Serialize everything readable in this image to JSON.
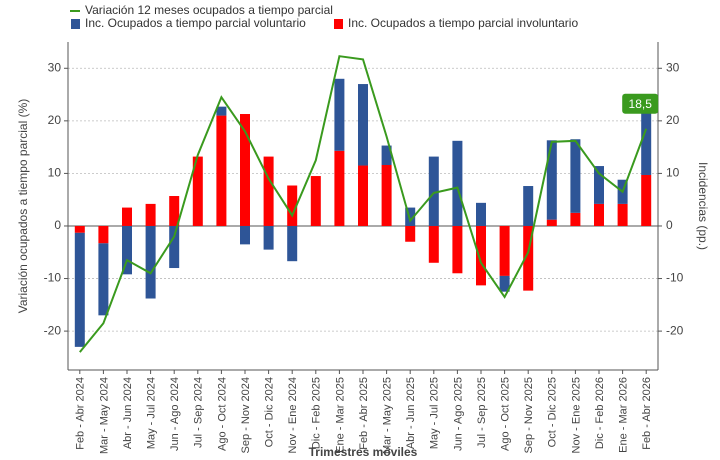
{
  "chart_data": {
    "type": "bar",
    "title": null,
    "x_label": "Trimestres móviles",
    "y_label": "Variación ocupados a tiempo parcial (%)",
    "y2_label": "Incidencias (pp.)",
    "categories": [
      "Feb - Abr 2024",
      "Mar - May 2024",
      "Abr - Jun 2024",
      "May - Jul 2024",
      "Jun - Ago 2024",
      "Jul - Sep 2024",
      "Ago - Oct 2024",
      "Sep - Nov 2024",
      "Oct - Dic 2024",
      "Nov - Ene 2024",
      "Dic - Feb 2025",
      "Ene - Mar 2025",
      "Feb - Abr 2025",
      "Mar - May 2025",
      "Abr - Jun 2025",
      "May - Jul 2025",
      "Jun - Ago 2025",
      "Jul - Sep 2025",
      "Ago - Oct 2025",
      "Sep - Nov 2025",
      "Oct - Dic 2025",
      "Nov - Ene 2025",
      "Dic - Feb 2026",
      "Ene - Mar 2026",
      "Feb - Abr 2026"
    ],
    "series": [
      {
        "name": "Variación 12 meses ocupados a tiempo parcial",
        "type": "line",
        "axis": "y2",
        "color": "#3a9a1e",
        "values": [
          -24,
          -18.5,
          -6.5,
          -9,
          -2,
          13.5,
          24.5,
          18,
          9,
          2,
          12.5,
          32.3,
          31.7,
          17,
          1,
          6.3,
          7.3,
          -7,
          -13.5,
          -5,
          16,
          16.2,
          10,
          6.5,
          18.5
        ],
        "value_labels": [
          null,
          null,
          null,
          null,
          null,
          null,
          null,
          null,
          null,
          null,
          null,
          null,
          null,
          null,
          null,
          null,
          null,
          null,
          null,
          null,
          null,
          null,
          null,
          null,
          "18,5"
        ]
      },
      {
        "name": "Inc. Ocupados a tiempo parcial voluntario",
        "type": "bar",
        "color": "#2e5597",
        "values": [
          -21.7,
          -13.7,
          -9.2,
          -13.8,
          -8,
          0,
          1.7,
          -3.5,
          -4.5,
          -6.7,
          0,
          13.7,
          15.5,
          3.7,
          3.5,
          13.2,
          16.2,
          4.4,
          -3,
          7.6,
          15.1,
          14,
          7.2,
          4.6,
          12.3
        ]
      },
      {
        "name": "Inc. Ocupados a tiempo parcial involuntario",
        "type": "bar",
        "color": "#ff0000",
        "values": [
          -1.3,
          -3.3,
          3.5,
          4.2,
          5.7,
          13.2,
          21,
          21.3,
          13.2,
          7.7,
          9.5,
          14.3,
          11.5,
          11.6,
          -3,
          -7,
          -9,
          -11.3,
          -9.5,
          -12.3,
          1.2,
          2.5,
          4.2,
          4.2,
          9.7
        ]
      }
    ],
    "stacked": true,
    "ylim": [
      -27.4,
      35
    ],
    "yticks": [
      -20,
      -10,
      0,
      10,
      20,
      30
    ],
    "y2lim": [
      -27.4,
      35
    ],
    "y2ticks": [
      -20,
      -10,
      0,
      10,
      20,
      30
    ],
    "grid": true,
    "legend": "top"
  }
}
